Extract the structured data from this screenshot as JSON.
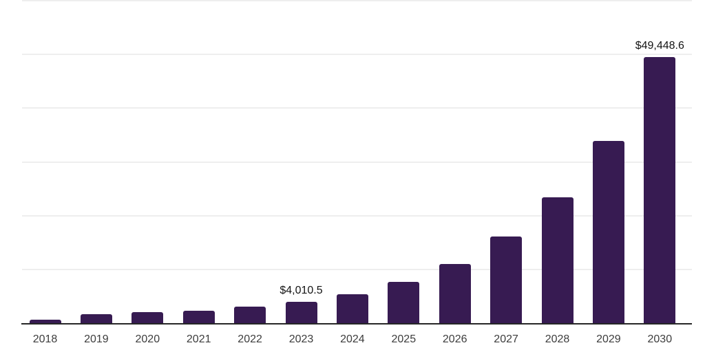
{
  "chart_data": {
    "type": "bar",
    "title": "",
    "xlabel": "",
    "ylabel": "",
    "categories": [
      "2018",
      "2019",
      "2020",
      "2021",
      "2022",
      "2023",
      "2024",
      "2025",
      "2026",
      "2027",
      "2028",
      "2029",
      "2030"
    ],
    "values": [
      600,
      1660,
      2080,
      2300,
      3100,
      4010.5,
      5400,
      7700,
      11000,
      16100,
      23450,
      33850,
      49448.6
    ],
    "data_labels": [
      "",
      "",
      "",
      "",
      "",
      "$4,010.5",
      "",
      "",
      "",
      "",
      "",
      "",
      "$49,448.6"
    ],
    "ylim": [
      0,
      60000
    ],
    "gridline_interval": 10000,
    "grid": "horizontal",
    "legend": "none",
    "y_tick_labels_visible": false,
    "bar_color": "#371b52",
    "axis_line_color": "#262626",
    "gridline_color": "#eeeeee",
    "data_label_color": "#141414",
    "tick_label_color": "#3c3c3c",
    "background_color": "#ffffff"
  }
}
